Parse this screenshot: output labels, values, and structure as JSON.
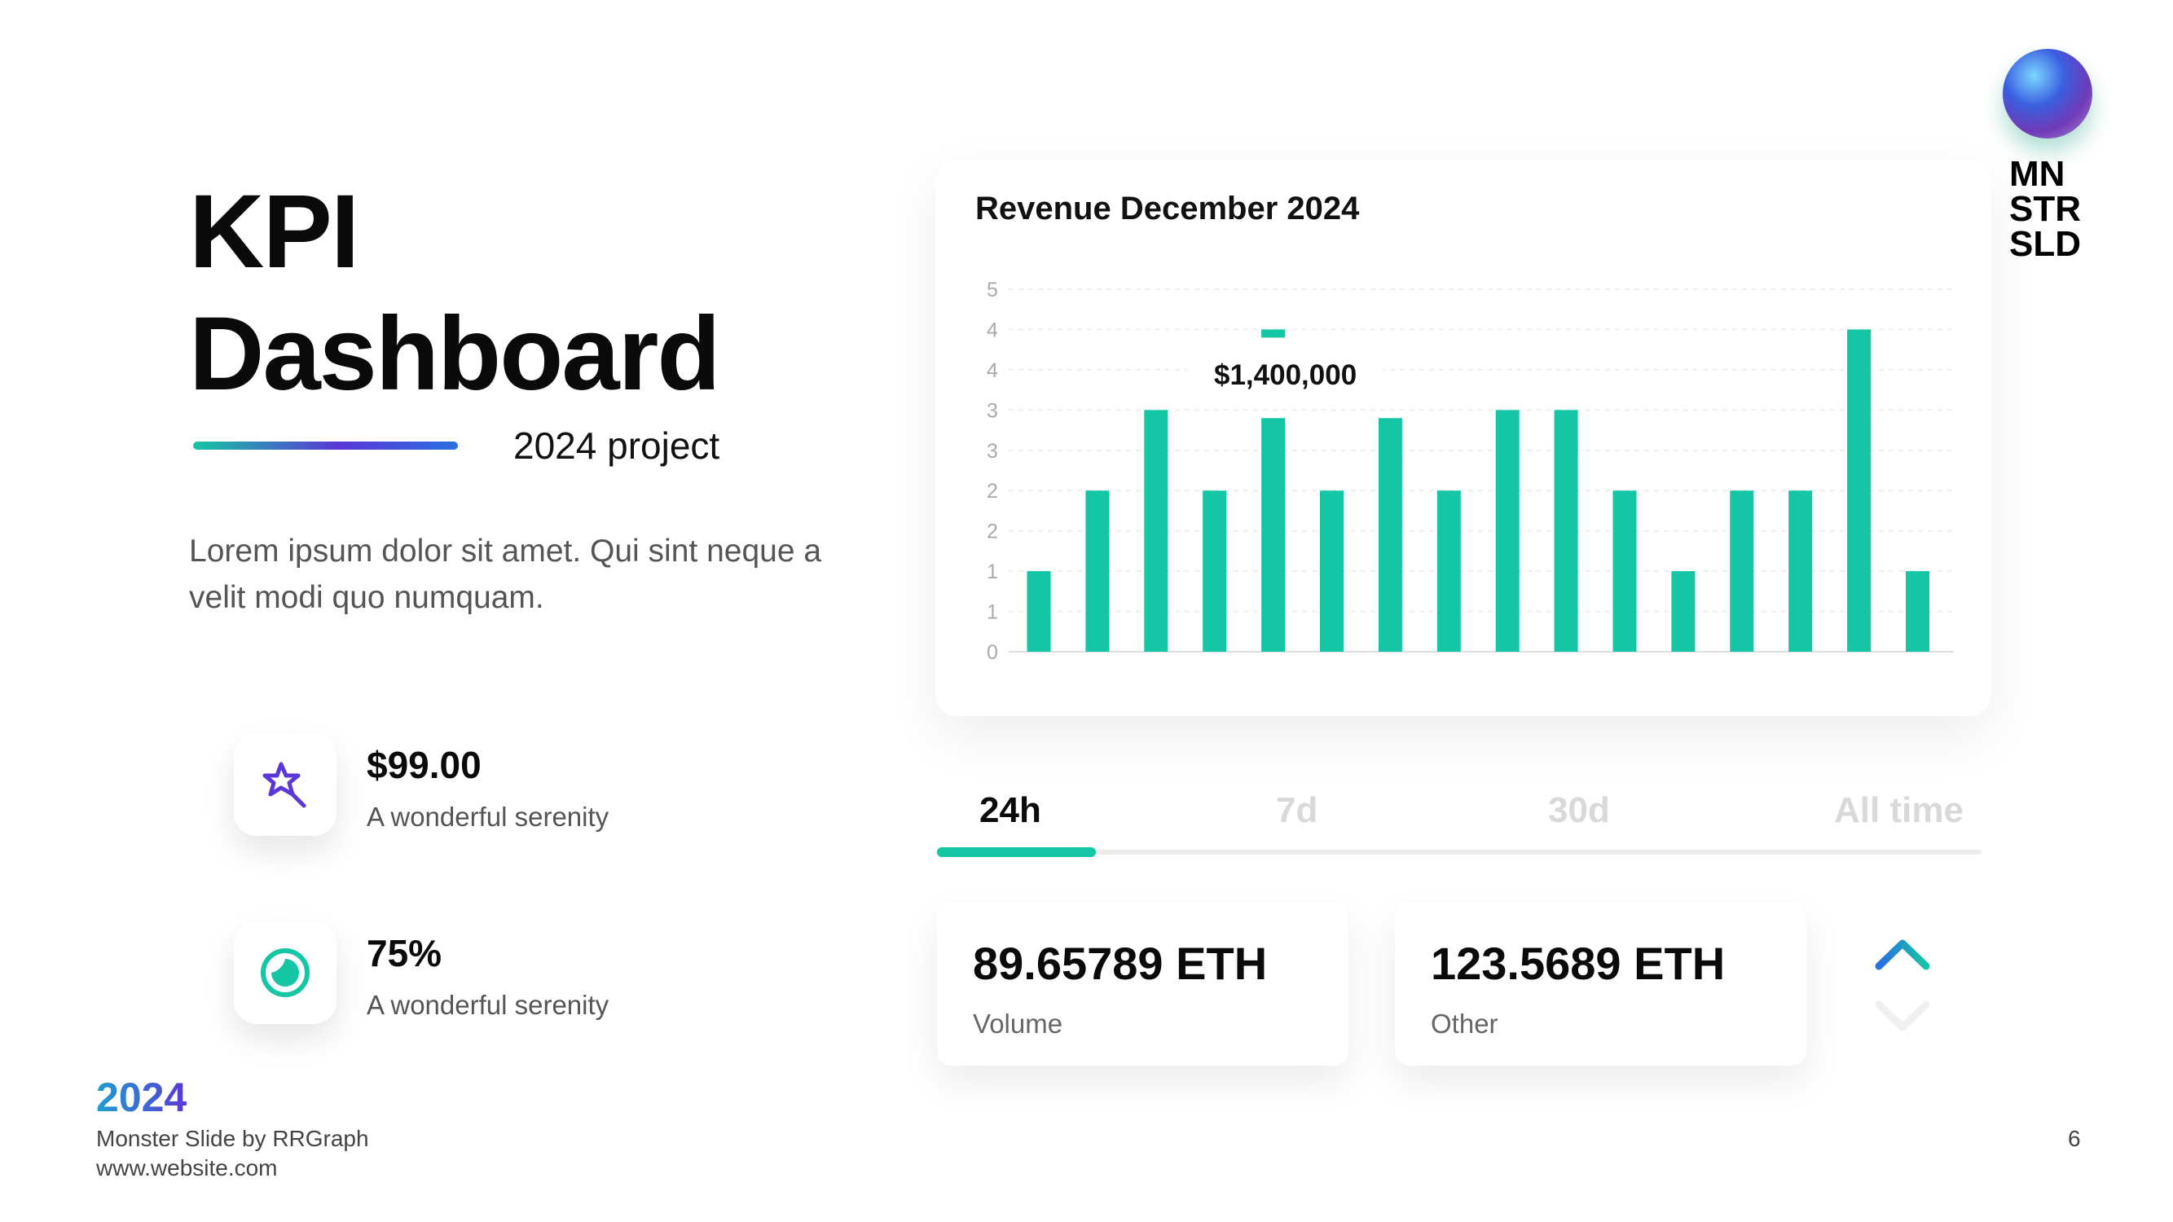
{
  "slide": {
    "title_line1": "KPI",
    "title_line2": "Dashboard",
    "subtitle": "2024 project",
    "description": "Lorem ipsum dolor sit amet. Qui sint neque a velit modi quo numquam."
  },
  "metrics": [
    {
      "icon": "magic-wand-star-icon",
      "value": "$99.00",
      "label": "A wonderful serenity"
    },
    {
      "icon": "progress-ring-icon",
      "value": "75%",
      "label": "A wonderful serenity"
    }
  ],
  "logo": {
    "line1": "MN",
    "line2": "STR",
    "line3": "SLD"
  },
  "tabs": [
    {
      "label": "24h",
      "active": true
    },
    {
      "label": "7d",
      "active": false
    },
    {
      "label": "30d",
      "active": false
    },
    {
      "label": "All time",
      "active": false
    }
  ],
  "stats": [
    {
      "value": "89.65789 ETH",
      "label": "Volume"
    },
    {
      "value": "123.5689 ETH",
      "label": "Other"
    }
  ],
  "footer": {
    "year": "2024",
    "line1": "Monster Slide by RRGraph",
    "line2": "www.website.com",
    "page_number": "6"
  },
  "colors": {
    "accent": "#14c6a4",
    "brand_purple": "#5a37d6",
    "brand_blue": "#2a6fe0",
    "muted": "#d9d9d9"
  },
  "chart_data": {
    "type": "bar",
    "title": "Revenue December 2024",
    "xlabel": "",
    "ylabel": "",
    "ylim": [
      0,
      4.5
    ],
    "y_tick_values": [
      0,
      0.5,
      1,
      1.5,
      2,
      2.5,
      3,
      3.5,
      4,
      4.5
    ],
    "y_tick_labels": [
      "0",
      "1",
      "1",
      "2",
      "2",
      "3",
      "3",
      "4",
      "4",
      "5"
    ],
    "values": [
      1,
      2,
      3,
      2,
      2.9,
      2,
      2.9,
      2,
      3,
      3,
      2,
      1,
      2,
      2,
      4,
      1
    ],
    "annotation": {
      "text": "$1,400,000",
      "bar_index": 4,
      "marker_value": 3.95
    },
    "grid": true,
    "legend": "none"
  }
}
